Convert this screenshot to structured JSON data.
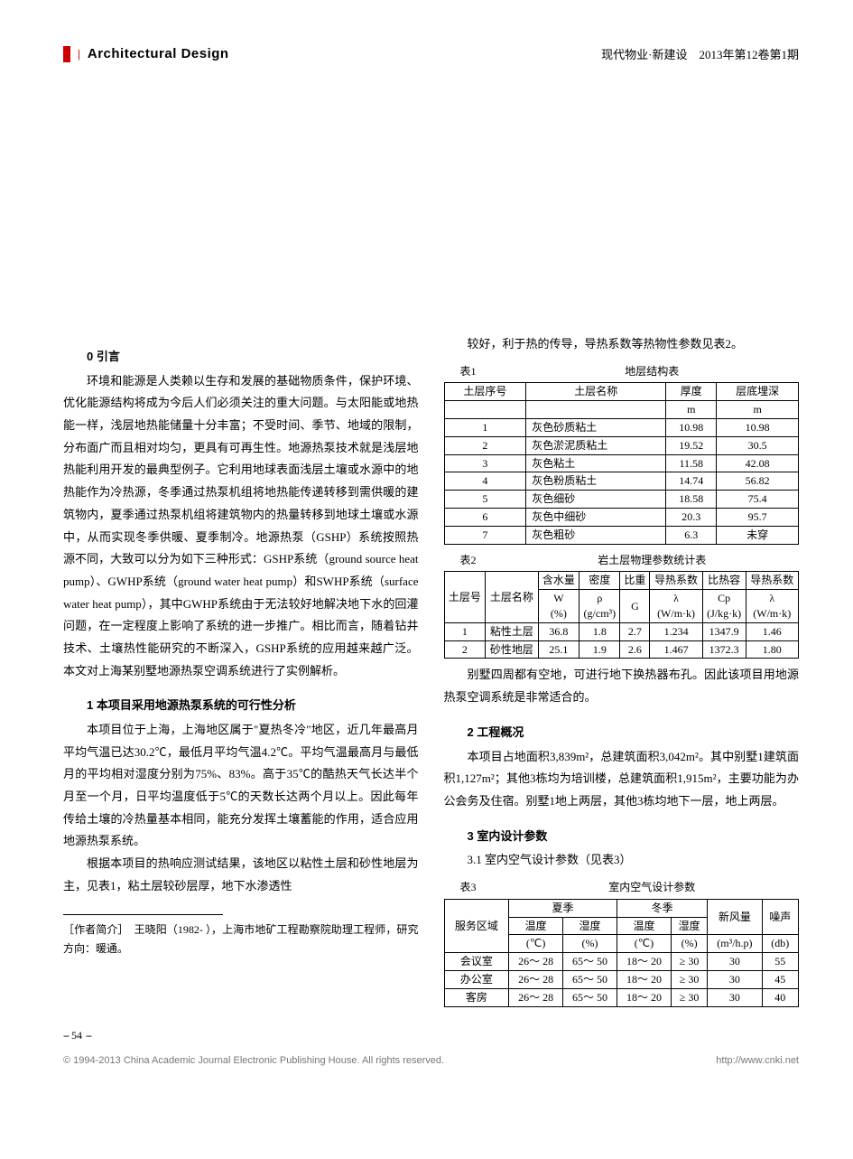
{
  "header": {
    "section_title": "Architectural Design",
    "publication": "现代物业·新建设　2013年第12卷第1期"
  },
  "left_col": {
    "h0": "0 引言",
    "p0": "环境和能源是人类赖以生存和发展的基础物质条件，保护环境、优化能源结构将成为今后人们必须关注的重大问题。与太阳能或地热能一样，浅层地热能储量十分丰富；不受时间、季节、地域的限制，分布面广而且相对均匀，更具有可再生性。地源热泵技术就是浅层地热能利用开发的最典型例子。它利用地球表面浅层土壤或水源中的地热能作为冷热源，冬季通过热泵机组将地热能传递转移到需供暖的建筑物内，夏季通过热泵机组将建筑物内的热量转移到地球土壤或水源中，从而实现冬季供暖、夏季制冷。地源热泵（GSHP）系统按照热源不同，大致可以分为如下三种形式：GSHP系统（ground source heat pump）、GWHP系统（ground water heat pump）和SWHP系统（surface water heat pump），其中GWHP系统由于无法较好地解决地下水的回灌问题，在一定程度上影响了系统的进一步推广。相比而言，随着钻井技术、土壤热性能研究的不断深入，GSHP系统的应用越来越广泛。本文对上海某别墅地源热泵空调系统进行了实例解析。",
    "h1": "1 本项目采用地源热泵系统的可行性分析",
    "p1": "本项目位于上海，上海地区属于\"夏热冬冷\"地区，近几年最高月平均气温已达30.2℃，最低月平均气温4.2℃。平均气温最高月与最低月的平均相对湿度分别为75%、83%。高于35℃的酷热天气长达半个月至一个月，日平均温度低于5℃的天数长达两个月以上。因此每年传给土壤的冷热量基本相同，能充分发挥土壤蓄能的作用，适合应用地源热泵系统。",
    "p2": "根据本项目的热响应测试结果，该地区以粘性土层和砂性地层为主，见表1，粘土层较砂层厚，地下水渗透性",
    "author_note": "［作者简介］　王晓阳（1982- ），上海市地矿工程勘察院助理工程师，研究方向：暖通。"
  },
  "right_col": {
    "p_cont": "较好，利于热的传导，导热系数等热物性参数见表2。",
    "table1": {
      "no": "表1",
      "title": "地层结构表",
      "headers": [
        "土层序号",
        "土层名称",
        "厚度",
        "层底埋深"
      ],
      "units": [
        "",
        "",
        "m",
        "m"
      ],
      "rows": [
        [
          "1",
          "灰色砂质粘土",
          "10.98",
          "10.98"
        ],
        [
          "2",
          "灰色淤泥质粘土",
          "19.52",
          "30.5"
        ],
        [
          "3",
          "灰色粘土",
          "11.58",
          "42.08"
        ],
        [
          "4",
          "灰色粉质粘土",
          "14.74",
          "56.82"
        ],
        [
          "5",
          "灰色细砂",
          "18.58",
          "75.4"
        ],
        [
          "6",
          "灰色中细砂",
          "20.3",
          "95.7"
        ],
        [
          "7",
          "灰色粗砂",
          "6.3",
          "未穿"
        ]
      ]
    },
    "table2": {
      "no": "表2",
      "title": "岩土层物理参数统计表",
      "head_row1": [
        "土层号",
        "土层名称",
        "含水量",
        "密度",
        "比重",
        "导热系数",
        "比热容",
        "导热系数"
      ],
      "head_row2": [
        "W\n(%)",
        "ρ\n(g/cm³)",
        "G",
        "λ\n(W/m·k)",
        "Cp\n(J/kg·k)",
        "λ\n(W/m·k)"
      ],
      "rows": [
        [
          "1",
          "粘性土层",
          "36.8",
          "1.8",
          "2.7",
          "1.234",
          "1347.9",
          "1.46"
        ],
        [
          "2",
          "砂性地层",
          "25.1",
          "1.9",
          "2.6",
          "1.467",
          "1372.3",
          "1.80"
        ]
      ]
    },
    "p_after_t2": "别墅四周都有空地，可进行地下换热器布孔。因此该项目用地源热泵空调系统是非常适合的。",
    "h2": "2 工程概况",
    "p_h2": "本项目占地面积3,839m²，总建筑面积3,042m²。其中别墅1建筑面积1,127m²；其他3栋均为培训楼，总建筑面积1,915m²，主要功能为办公会务及住宿。别墅1地上两层，其他3栋均地下一层，地上两层。",
    "h3": "3 室内设计参数",
    "h3_1": "3.1 室内空气设计参数（见表3）",
    "table3": {
      "no": "表3",
      "title": "室内空气设计参数",
      "head_r1": [
        "服务区域",
        "夏季",
        "冬季",
        "新风量",
        "噪声"
      ],
      "head_r2": [
        "温度",
        "湿度",
        "温度",
        "湿度"
      ],
      "head_r3": [
        "(℃)",
        "(%)",
        "(℃)",
        "(%)",
        "(m³/h.p)",
        "(db)"
      ],
      "rows": [
        [
          "会议室",
          "26～ 28",
          "65～ 50",
          "18～ 20",
          "≥ 30",
          "30",
          "55"
        ],
        [
          "办公室",
          "26～ 28",
          "65～ 50",
          "18～ 20",
          "≥ 30",
          "30",
          "45"
        ],
        [
          "客房",
          "26～ 28",
          "65～ 50",
          "18～ 20",
          "≥ 30",
          "30",
          "40"
        ]
      ]
    }
  },
  "footer": {
    "page_num": "54",
    "copyright_left": "© 1994-2013 China Academic Journal Electronic Publishing House. All rights reserved.",
    "copyright_right": "http://www.cnki.net"
  }
}
